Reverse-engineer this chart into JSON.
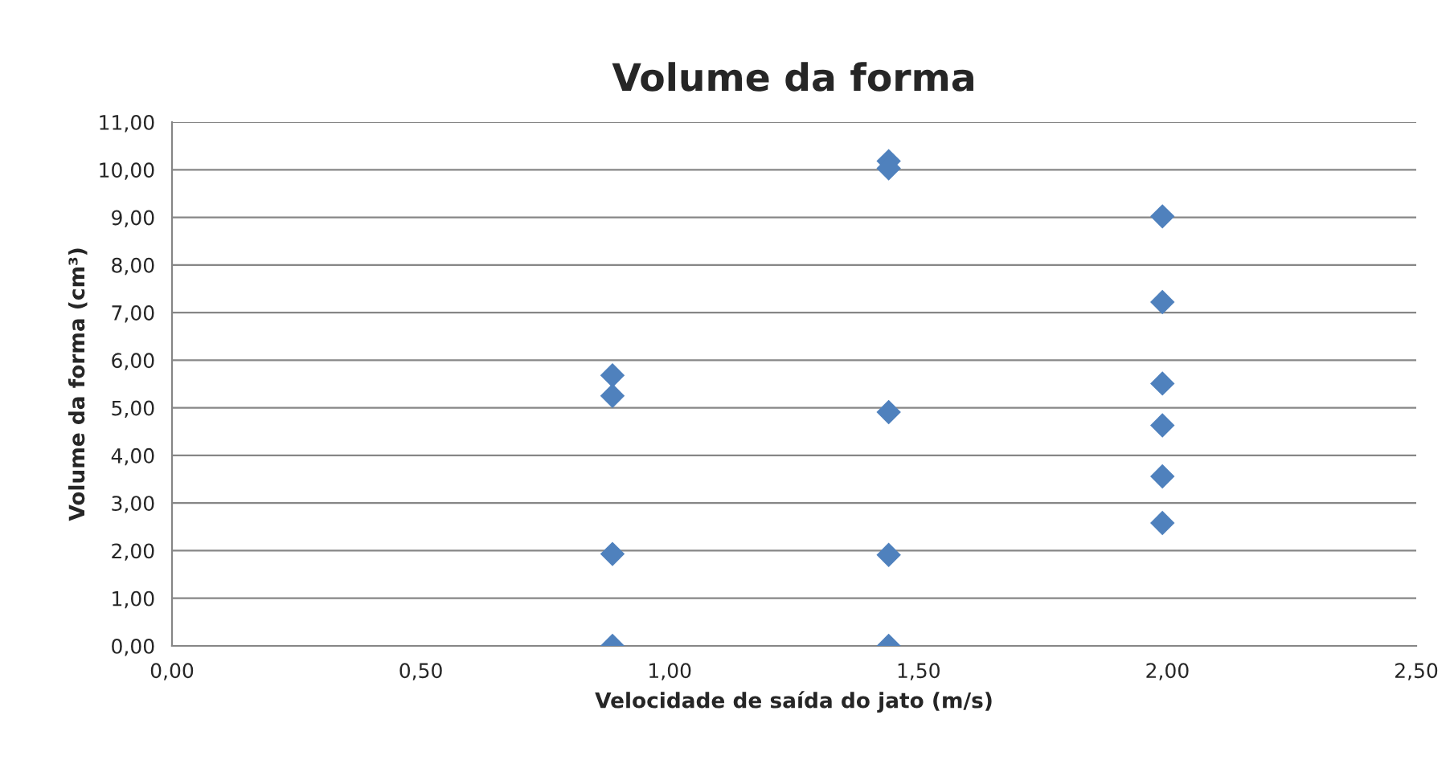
{
  "chart_data": {
    "type": "scatter",
    "title": "Volume da forma",
    "xlabel": "Velocidade de saída do jato (m/s)",
    "ylabel": "Volume da forma (cm³)",
    "series": [
      {
        "color": "#4f81bd",
        "marker": "diamond",
        "x": [
          0.885,
          0.885,
          0.885,
          0.885,
          1.44,
          1.44,
          1.44,
          1.44,
          1.44,
          1.99,
          1.99,
          1.99,
          1.99,
          1.99,
          1.99
        ],
        "values": [
          5.68,
          5.25,
          1.93,
          0.0,
          10.18,
          10.03,
          4.91,
          1.91,
          0.0,
          9.02,
          7.22,
          5.51,
          4.63,
          3.56,
          2.58
        ]
      }
    ],
    "xlim": [
      0,
      2.5
    ],
    "xticks": [
      {
        "value": 0,
        "label": "0,00"
      },
      {
        "value": 0.5,
        "label": "0,50"
      },
      {
        "value": 1,
        "label": "1,00"
      },
      {
        "value": 1.5,
        "label": "1,50"
      },
      {
        "value": 2,
        "label": "2,00"
      },
      {
        "value": 2.5,
        "label": "2,50"
      }
    ],
    "ylim": [
      0,
      11
    ],
    "yticks": [
      {
        "value": 0,
        "label": "0,00"
      },
      {
        "value": 1,
        "label": "1,00"
      },
      {
        "value": 2,
        "label": "2,00"
      },
      {
        "value": 3,
        "label": "3,00"
      },
      {
        "value": 4,
        "label": "4,00"
      },
      {
        "value": 5,
        "label": "5,00"
      },
      {
        "value": 6,
        "label": "6,00"
      },
      {
        "value": 7,
        "label": "7,00"
      },
      {
        "value": 8,
        "label": "8,00"
      },
      {
        "value": 9,
        "label": "9,00"
      },
      {
        "value": 10,
        "label": "10,00"
      },
      {
        "value": 11,
        "label": "11,00"
      }
    ],
    "grid": "y"
  }
}
